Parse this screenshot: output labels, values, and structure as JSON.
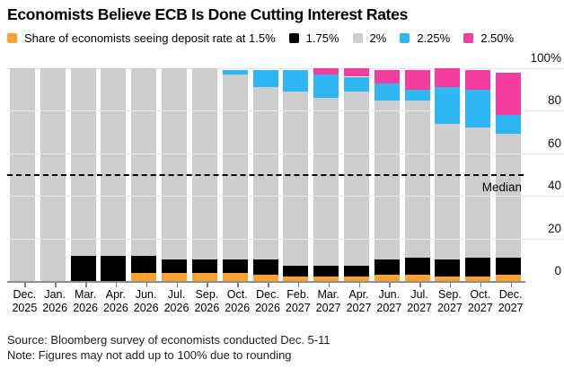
{
  "title": "Economists Believe ECB Is Done Cutting Interest Rates",
  "legend": {
    "items": [
      {
        "label": "Share of economists seeing deposit rate at 1.5%",
        "color": "#F7A233"
      },
      {
        "label": "1.75%",
        "color": "#000000"
      },
      {
        "label": "2%",
        "color": "#CDCDCD"
      },
      {
        "label": "2.25%",
        "color": "#2EB7F2"
      },
      {
        "label": "2.50%",
        "color": "#F53DA0"
      }
    ]
  },
  "chart_data": {
    "type": "bar",
    "stacked": true,
    "title": "Economists Believe ECB Is Done Cutting Interest Rates",
    "categories": [
      "Dec. 2025",
      "Jan. 2026",
      "Mar. 2026",
      "Apr. 2026",
      "Jun. 2026",
      "Jul. 2026",
      "Sep. 2026",
      "Oct. 2026",
      "Dec. 2026",
      "Feb. 2027",
      "Mar. 2027",
      "Apr. 2027",
      "Jun. 2027",
      "Jul. 2027",
      "Sep. 2027",
      "Oct. 2027",
      "Dec. 2027"
    ],
    "series": [
      {
        "name": "1.5%",
        "color": "#F7A233",
        "values": [
          0,
          0,
          0,
          0,
          4,
          4,
          4,
          4,
          3,
          2,
          2,
          2,
          3,
          3,
          2,
          2,
          3
        ]
      },
      {
        "name": "1.75%",
        "color": "#000000",
        "values": [
          0,
          0,
          12,
          12,
          8,
          6,
          6,
          6,
          7,
          5,
          5,
          5,
          7,
          8,
          8,
          9,
          8
        ]
      },
      {
        "name": "2%",
        "color": "#CDCDCD",
        "values": [
          100,
          100,
          88,
          88,
          88,
          90,
          90,
          87,
          81,
          82,
          79,
          82,
          75,
          74,
          64,
          61,
          58
        ]
      },
      {
        "name": "2.25%",
        "color": "#2EB7F2",
        "values": [
          0,
          0,
          0,
          0,
          0,
          0,
          0,
          2,
          8,
          10,
          11,
          7,
          8,
          5,
          17,
          18,
          9
        ]
      },
      {
        "name": "2.50%",
        "color": "#F53DA0",
        "values": [
          0,
          0,
          0,
          0,
          0,
          0,
          0,
          0,
          0,
          0,
          3,
          4,
          6,
          9,
          9,
          9,
          20
        ]
      }
    ],
    "ylim": [
      0,
      100
    ],
    "yticks": [
      0,
      20,
      40,
      60,
      80,
      100
    ],
    "ytick_labels": [
      "0",
      "20",
      "40",
      "60",
      "80",
      "100%"
    ],
    "median_line": {
      "label": "Median",
      "value": 50
    },
    "grid": "horizontal",
    "grid_color": "#E4E4E4",
    "axis_color": "#8F8F8F",
    "median_color": "#000000",
    "legend_position": "top"
  },
  "footer": {
    "source": "Source: Bloomberg survey of economists conducted Dec. 5-11",
    "note": "Note: Figures may not add up to 100% due to rounding"
  }
}
